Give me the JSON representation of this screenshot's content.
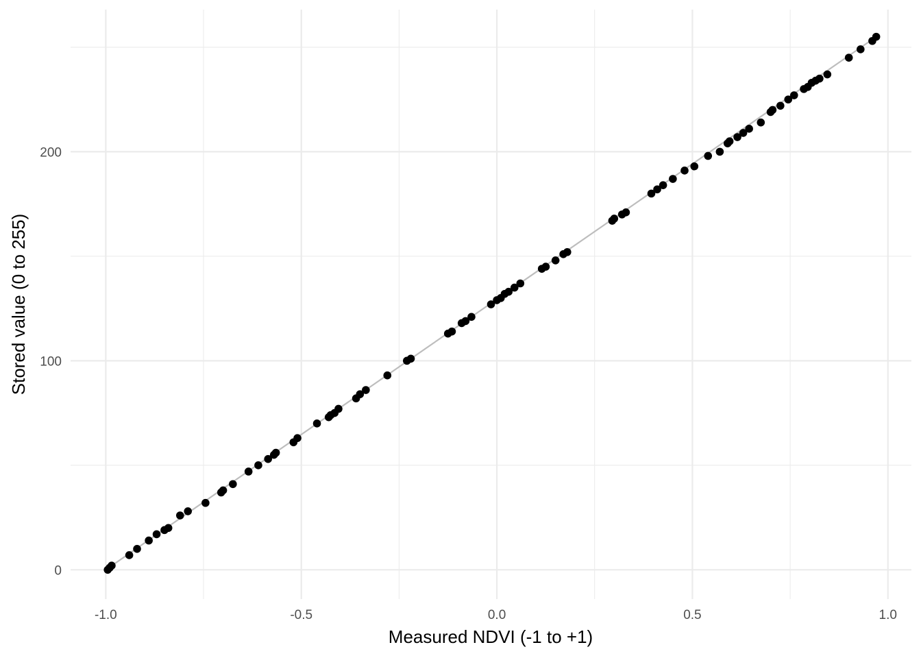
{
  "chart_data": {
    "type": "scatter",
    "title": "",
    "xlabel": "Measured NDVI (-1 to +1)",
    "ylabel": "Stored value (0 to 255)",
    "xlim": [
      -1.09,
      1.06
    ],
    "ylim": [
      -14,
      268
    ],
    "x_ticks": [
      -1.0,
      -0.5,
      0.0,
      0.5,
      1.0
    ],
    "x_tick_labels": [
      "-1.0",
      "-0.5",
      "0.0",
      "0.5",
      "1.0"
    ],
    "x_minor_grid": [
      -0.75,
      -0.25,
      0.25,
      0.75
    ],
    "y_ticks": [
      0,
      100,
      200
    ],
    "y_tick_labels": [
      "0",
      "100",
      "200"
    ],
    "y_minor_grid": [
      50,
      150,
      250
    ],
    "grid": true,
    "legend": "none",
    "point_color": "#000000",
    "line_color": "#bdbdbd",
    "grid_color": "#ebebeb",
    "fit_line": {
      "x": [
        -1.0,
        0.97
      ],
      "y": [
        0,
        255
      ]
    },
    "x": [
      -0.995,
      -0.99,
      -0.985,
      -0.94,
      -0.92,
      -0.89,
      -0.87,
      -0.85,
      -0.84,
      -0.81,
      -0.79,
      -0.745,
      -0.705,
      -0.7,
      -0.675,
      -0.635,
      -0.61,
      -0.585,
      -0.57,
      -0.565,
      -0.52,
      -0.51,
      -0.46,
      -0.43,
      -0.425,
      -0.415,
      -0.405,
      -0.36,
      -0.35,
      -0.335,
      -0.28,
      -0.23,
      -0.22,
      -0.125,
      -0.115,
      -0.09,
      -0.08,
      -0.065,
      -0.015,
      0.0,
      0.01,
      0.02,
      0.03,
      0.045,
      0.06,
      0.115,
      0.125,
      0.15,
      0.17,
      0.18,
      0.295,
      0.3,
      0.32,
      0.33,
      0.395,
      0.41,
      0.425,
      0.45,
      0.48,
      0.505,
      0.54,
      0.57,
      0.59,
      0.595,
      0.615,
      0.63,
      0.645,
      0.675,
      0.7,
      0.705,
      0.725,
      0.745,
      0.76,
      0.785,
      0.795,
      0.805,
      0.815,
      0.825,
      0.845,
      0.9,
      0.93,
      0.96,
      0.97
    ],
    "y": [
      0,
      1,
      2,
      7,
      10,
      14,
      17,
      19,
      20,
      26,
      28,
      32,
      37,
      38,
      41,
      47,
      50,
      53,
      55,
      56,
      61,
      63,
      70,
      73,
      74,
      75,
      77,
      82,
      84,
      86,
      93,
      100,
      101,
      113,
      114,
      118,
      119,
      121,
      127,
      129,
      130,
      132,
      133,
      135,
      137,
      144,
      145,
      148,
      151,
      152,
      167,
      168,
      170,
      171,
      180,
      182,
      184,
      187,
      191,
      193,
      198,
      200,
      204,
      205,
      207,
      209,
      211,
      214,
      219,
      220,
      222,
      225,
      227,
      230,
      231,
      233,
      234,
      235,
      237,
      245,
      249,
      253,
      255
    ]
  }
}
